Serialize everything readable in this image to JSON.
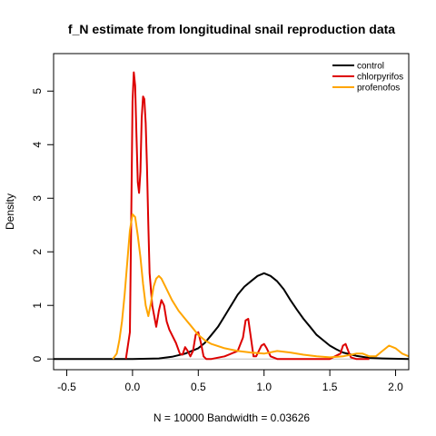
{
  "chart_data": {
    "type": "line",
    "title": "f_N estimate from longitudinal snail reproduction data",
    "xlabel": "N = 10000   Bandwidth = 0.03626",
    "ylabel": "Density",
    "xlim": [
      -0.6,
      2.1
    ],
    "ylim": [
      -0.2,
      5.7
    ],
    "x_ticks": [
      -0.5,
      0.0,
      0.5,
      1.0,
      1.5,
      2.0
    ],
    "x_tick_labels": [
      "-0.5",
      "0.0",
      "0.5",
      "1.0",
      "1.5",
      "2.0"
    ],
    "y_ticks": [
      0,
      1,
      2,
      3,
      4,
      5
    ],
    "y_tick_labels": [
      "0",
      "1",
      "2",
      "3",
      "4",
      "5"
    ],
    "grid": false,
    "legend_position": "top-right",
    "series": [
      {
        "name": "control",
        "color": "#000000",
        "x": [
          -0.6,
          0.0,
          0.2,
          0.3,
          0.4,
          0.5,
          0.55,
          0.6,
          0.65,
          0.7,
          0.75,
          0.8,
          0.85,
          0.9,
          0.95,
          1.0,
          1.05,
          1.1,
          1.15,
          1.2,
          1.25,
          1.3,
          1.35,
          1.4,
          1.45,
          1.5,
          1.55,
          1.6,
          1.7,
          1.8,
          1.9,
          2.1
        ],
        "y": [
          0,
          0,
          0.01,
          0.04,
          0.1,
          0.2,
          0.3,
          0.45,
          0.6,
          0.8,
          1.0,
          1.2,
          1.35,
          1.45,
          1.55,
          1.6,
          1.55,
          1.45,
          1.3,
          1.1,
          0.92,
          0.75,
          0.6,
          0.45,
          0.35,
          0.25,
          0.18,
          0.12,
          0.06,
          0.02,
          0.01,
          0
        ]
      },
      {
        "name": "chlorpyrifos",
        "color": "#dd0000",
        "x": [
          -0.05,
          -0.02,
          -0.01,
          0.0,
          0.01,
          0.02,
          0.03,
          0.04,
          0.05,
          0.06,
          0.07,
          0.08,
          0.09,
          0.1,
          0.11,
          0.12,
          0.13,
          0.15,
          0.18,
          0.2,
          0.22,
          0.24,
          0.26,
          0.28,
          0.3,
          0.33,
          0.36,
          0.38,
          0.4,
          0.42,
          0.44,
          0.46,
          0.48,
          0.5,
          0.52,
          0.54,
          0.56,
          0.6,
          0.7,
          0.8,
          0.84,
          0.86,
          0.88,
          0.9,
          0.92,
          0.94,
          0.96,
          0.98,
          1.0,
          1.02,
          1.05,
          1.1,
          1.2,
          1.3,
          1.5,
          1.58,
          1.6,
          1.62,
          1.64,
          1.66,
          1.7,
          1.8
        ],
        "y": [
          0,
          0.5,
          2.5,
          4.8,
          5.35,
          5.1,
          4.2,
          3.3,
          3.1,
          3.5,
          4.5,
          4.9,
          4.85,
          4.4,
          3.6,
          2.5,
          1.6,
          1.0,
          0.6,
          0.9,
          1.1,
          1.0,
          0.7,
          0.55,
          0.45,
          0.3,
          0.1,
          0.08,
          0.22,
          0.15,
          0.05,
          0.15,
          0.45,
          0.5,
          0.3,
          0.05,
          0.0,
          0.0,
          0.05,
          0.15,
          0.4,
          0.72,
          0.75,
          0.4,
          0.05,
          0.05,
          0.15,
          0.25,
          0.28,
          0.2,
          0.05,
          0.0,
          0.0,
          0.0,
          0.0,
          0.1,
          0.25,
          0.28,
          0.15,
          0.03,
          0.0,
          0.0
        ]
      },
      {
        "name": "profenofos",
        "color": "#ffa500",
        "x": [
          -0.15,
          -0.12,
          -0.1,
          -0.08,
          -0.06,
          -0.04,
          -0.02,
          0.0,
          0.02,
          0.04,
          0.06,
          0.08,
          0.1,
          0.12,
          0.14,
          0.16,
          0.18,
          0.2,
          0.22,
          0.25,
          0.3,
          0.35,
          0.4,
          0.45,
          0.5,
          0.55,
          0.6,
          0.7,
          0.8,
          0.9,
          1.0,
          1.1,
          1.2,
          1.3,
          1.4,
          1.5,
          1.6,
          1.7,
          1.75,
          1.8,
          1.85,
          1.9,
          1.95,
          2.0,
          2.05,
          2.1
        ],
        "y": [
          0.0,
          0.1,
          0.35,
          0.7,
          1.2,
          1.8,
          2.4,
          2.7,
          2.65,
          2.3,
          1.9,
          1.4,
          1.0,
          0.8,
          1.05,
          1.35,
          1.5,
          1.55,
          1.5,
          1.35,
          1.1,
          0.9,
          0.75,
          0.6,
          0.45,
          0.35,
          0.28,
          0.2,
          0.15,
          0.12,
          0.1,
          0.15,
          0.12,
          0.08,
          0.05,
          0.03,
          0.05,
          0.1,
          0.1,
          0.05,
          0.05,
          0.15,
          0.25,
          0.2,
          0.1,
          0.05
        ]
      }
    ]
  }
}
